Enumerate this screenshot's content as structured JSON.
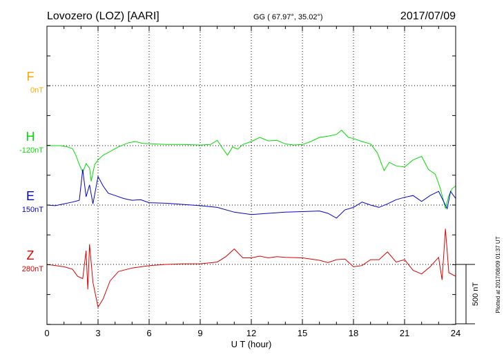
{
  "header": {
    "station": "Lovozero (LOZ)  [AARI]",
    "coords": "GG ( 67.97°,  35.02°)",
    "date": "2017/07/09"
  },
  "footer": {
    "plotted": "Plotted at 2017/08/09 01:37 UT"
  },
  "chart_data": {
    "type": "line",
    "xlabel": "U T (hour)",
    "xlim": [
      0,
      24
    ],
    "xticks": [
      "0",
      "3",
      "6",
      "9",
      "12",
      "15",
      "18",
      "21",
      "24"
    ],
    "scale_bar": {
      "label": "500 nT",
      "value_nT": 500
    },
    "colors": {
      "F": "#ffa500",
      "H": "#00dd00",
      "E": "#0000cc",
      "Z": "#dd0000"
    },
    "series": [
      {
        "name": "F",
        "offset_label": "0nT",
        "points": []
      },
      {
        "name": "H",
        "offset_label": "-120nT",
        "points": [
          [
            0,
            0
          ],
          [
            0.8,
            0
          ],
          [
            1.2,
            -10
          ],
          [
            1.5,
            -25
          ],
          [
            1.7,
            -80
          ],
          [
            1.9,
            -160
          ],
          [
            2.1,
            -225
          ],
          [
            2.3,
            -150
          ],
          [
            2.5,
            -190
          ],
          [
            2.6,
            -300
          ],
          [
            2.8,
            -160
          ],
          [
            3.0,
            -120
          ],
          [
            3.3,
            -80
          ],
          [
            3.7,
            -50
          ],
          [
            4.2,
            -10
          ],
          [
            4.8,
            25
          ],
          [
            5.2,
            35
          ],
          [
            5.6,
            20
          ],
          [
            6.2,
            15
          ],
          [
            7,
            10
          ],
          [
            8,
            10
          ],
          [
            9,
            5
          ],
          [
            9.6,
            10
          ],
          [
            10.0,
            45
          ],
          [
            10.3,
            -20
          ],
          [
            10.6,
            -80
          ],
          [
            10.9,
            -10
          ],
          [
            11.2,
            -30
          ],
          [
            11.5,
            10
          ],
          [
            12.0,
            35
          ],
          [
            12.5,
            70
          ],
          [
            13,
            40
          ],
          [
            13.5,
            45
          ],
          [
            14,
            15
          ],
          [
            14.5,
            5
          ],
          [
            15,
            10
          ],
          [
            15.5,
            35
          ],
          [
            16,
            70
          ],
          [
            16.5,
            80
          ],
          [
            17,
            95
          ],
          [
            17.3,
            130
          ],
          [
            17.7,
            70
          ],
          [
            18,
            60
          ],
          [
            18.5,
            35
          ],
          [
            19,
            15
          ],
          [
            19.4,
            -60
          ],
          [
            19.8,
            -210
          ],
          [
            20.1,
            -140
          ],
          [
            20.5,
            -170
          ],
          [
            21,
            -180
          ],
          [
            21.5,
            -120
          ],
          [
            22,
            -90
          ],
          [
            22.4,
            -200
          ],
          [
            22.8,
            -240
          ],
          [
            23.1,
            -360
          ],
          [
            23.4,
            -530
          ],
          [
            23.6,
            -420
          ],
          [
            23.8,
            -360
          ],
          [
            24,
            -340
          ]
        ]
      },
      {
        "name": "E",
        "offset_label": "150nT",
        "points": [
          [
            0,
            0
          ],
          [
            0.5,
            -5
          ],
          [
            1,
            10
          ],
          [
            1.5,
            25
          ],
          [
            1.9,
            40
          ],
          [
            2.1,
            300
          ],
          [
            2.3,
            70
          ],
          [
            2.5,
            170
          ],
          [
            2.7,
            10
          ],
          [
            3.0,
            240
          ],
          [
            3.3,
            160
          ],
          [
            3.6,
            100
          ],
          [
            4,
            80
          ],
          [
            4.5,
            55
          ],
          [
            5,
            40
          ],
          [
            5.5,
            45
          ],
          [
            6,
            20
          ],
          [
            7,
            15
          ],
          [
            8,
            5
          ],
          [
            9,
            -5
          ],
          [
            10,
            -20
          ],
          [
            11,
            -60
          ],
          [
            12,
            -80
          ],
          [
            13,
            -70
          ],
          [
            14,
            -60
          ],
          [
            15,
            -55
          ],
          [
            16,
            -50
          ],
          [
            16.5,
            -70
          ],
          [
            17,
            -110
          ],
          [
            17.5,
            -40
          ],
          [
            18,
            -20
          ],
          [
            18.5,
            25
          ],
          [
            19,
            0
          ],
          [
            19.5,
            -20
          ],
          [
            20,
            10
          ],
          [
            20.5,
            45
          ],
          [
            21,
            65
          ],
          [
            21.5,
            80
          ],
          [
            22,
            30
          ],
          [
            22.5,
            80
          ],
          [
            23,
            115
          ],
          [
            23.5,
            -30
          ],
          [
            23.7,
            115
          ],
          [
            24,
            55
          ]
        ]
      },
      {
        "name": "Z",
        "offset_label": "280nT",
        "points": [
          [
            0,
            0
          ],
          [
            1,
            -20
          ],
          [
            1.5,
            -40
          ],
          [
            1.8,
            -100
          ],
          [
            2.1,
            -120
          ],
          [
            2.3,
            115
          ],
          [
            2.4,
            -210
          ],
          [
            2.5,
            170
          ],
          [
            2.7,
            -150
          ],
          [
            3.0,
            -360
          ],
          [
            3.3,
            -290
          ],
          [
            3.7,
            -140
          ],
          [
            4.2,
            -60
          ],
          [
            5,
            -30
          ],
          [
            6,
            -10
          ],
          [
            7,
            0
          ],
          [
            8,
            5
          ],
          [
            9,
            5
          ],
          [
            10,
            20
          ],
          [
            10.5,
            65
          ],
          [
            11,
            130
          ],
          [
            11.5,
            55
          ],
          [
            12,
            55
          ],
          [
            12.5,
            70
          ],
          [
            13,
            55
          ],
          [
            13.5,
            65
          ],
          [
            14,
            60
          ],
          [
            15,
            55
          ],
          [
            16,
            35
          ],
          [
            16.5,
            15
          ],
          [
            17,
            40
          ],
          [
            17.5,
            45
          ],
          [
            18,
            -20
          ],
          [
            18.5,
            -10
          ],
          [
            19,
            40
          ],
          [
            19.5,
            40
          ],
          [
            20,
            105
          ],
          [
            20.5,
            20
          ],
          [
            21,
            40
          ],
          [
            21.5,
            -50
          ],
          [
            22,
            -80
          ],
          [
            22.5,
            -20
          ],
          [
            23,
            60
          ],
          [
            23.2,
            -130
          ],
          [
            23.4,
            300
          ],
          [
            23.6,
            -70
          ],
          [
            24,
            -100
          ]
        ]
      }
    ]
  }
}
